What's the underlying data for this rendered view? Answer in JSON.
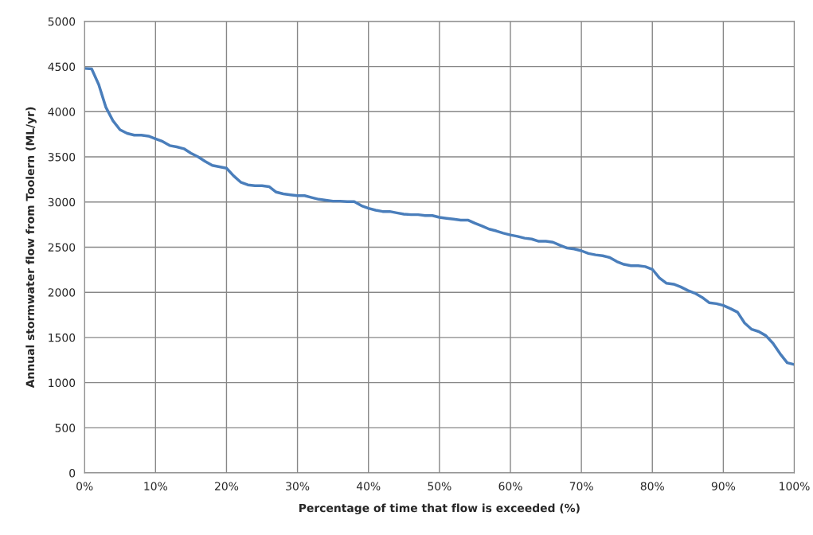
{
  "chart_data": {
    "type": "line",
    "xlabel": "Percentage of time that flow is exceeded (%)",
    "ylabel": "Annual stormwater flow from Toolern (ML/yr)",
    "x": [
      0,
      1,
      2,
      3,
      4,
      5,
      6,
      7,
      8,
      9,
      10,
      11,
      12,
      13,
      14,
      15,
      16,
      17,
      18,
      19,
      20,
      21,
      22,
      23,
      24,
      25,
      26,
      27,
      28,
      29,
      30,
      31,
      32,
      33,
      34,
      35,
      36,
      37,
      38,
      39,
      40,
      41,
      42,
      43,
      44,
      45,
      46,
      47,
      48,
      49,
      50,
      51,
      52,
      53,
      54,
      55,
      56,
      57,
      58,
      59,
      60,
      61,
      62,
      63,
      64,
      65,
      66,
      67,
      68,
      69,
      70,
      71,
      72,
      73,
      74,
      75,
      76,
      77,
      78,
      79,
      80,
      81,
      82,
      83,
      84,
      85,
      86,
      87,
      88,
      89,
      90,
      91,
      92,
      93,
      94,
      95,
      96,
      97,
      98,
      99,
      100
    ],
    "series": [
      {
        "color": "#4a7ebb",
        "values": [
          4480,
          4475,
          4300,
          4050,
          3900,
          3800,
          3760,
          3740,
          3740,
          3730,
          3700,
          3670,
          3625,
          3610,
          3590,
          3540,
          3500,
          3450,
          3405,
          3390,
          3375,
          3290,
          3220,
          3190,
          3180,
          3180,
          3170,
          3110,
          3090,
          3080,
          3070,
          3070,
          3050,
          3030,
          3020,
          3010,
          3010,
          3005,
          3005,
          2960,
          2930,
          2910,
          2895,
          2895,
          2880,
          2865,
          2860,
          2860,
          2850,
          2850,
          2830,
          2820,
          2810,
          2800,
          2800,
          2765,
          2735,
          2700,
          2680,
          2655,
          2635,
          2620,
          2600,
          2590,
          2565,
          2565,
          2555,
          2520,
          2490,
          2480,
          2460,
          2430,
          2415,
          2405,
          2385,
          2340,
          2310,
          2295,
          2295,
          2285,
          2255,
          2160,
          2100,
          2090,
          2060,
          2020,
          1990,
          1945,
          1885,
          1875,
          1855,
          1820,
          1780,
          1660,
          1590,
          1565,
          1520,
          1435,
          1320,
          1220,
          1200
        ]
      }
    ],
    "xlim": [
      0,
      100
    ],
    "xticks": [
      {
        "value": 0,
        "label": "0%"
      },
      {
        "value": 10,
        "label": "10%"
      },
      {
        "value": 20,
        "label": "20%"
      },
      {
        "value": 30,
        "label": "30%"
      },
      {
        "value": 40,
        "label": "40%"
      },
      {
        "value": 50,
        "label": "50%"
      },
      {
        "value": 60,
        "label": "60%"
      },
      {
        "value": 70,
        "label": "70%"
      },
      {
        "value": 80,
        "label": "80%"
      },
      {
        "value": 90,
        "label": "90%"
      },
      {
        "value": 100,
        "label": "100%"
      }
    ],
    "ylim": [
      0,
      5000
    ],
    "yticks": [
      0,
      500,
      1000,
      1500,
      2000,
      2500,
      3000,
      3500,
      4000,
      4500,
      5000
    ],
    "grid": true,
    "line_style": "solid",
    "marker": "none"
  }
}
